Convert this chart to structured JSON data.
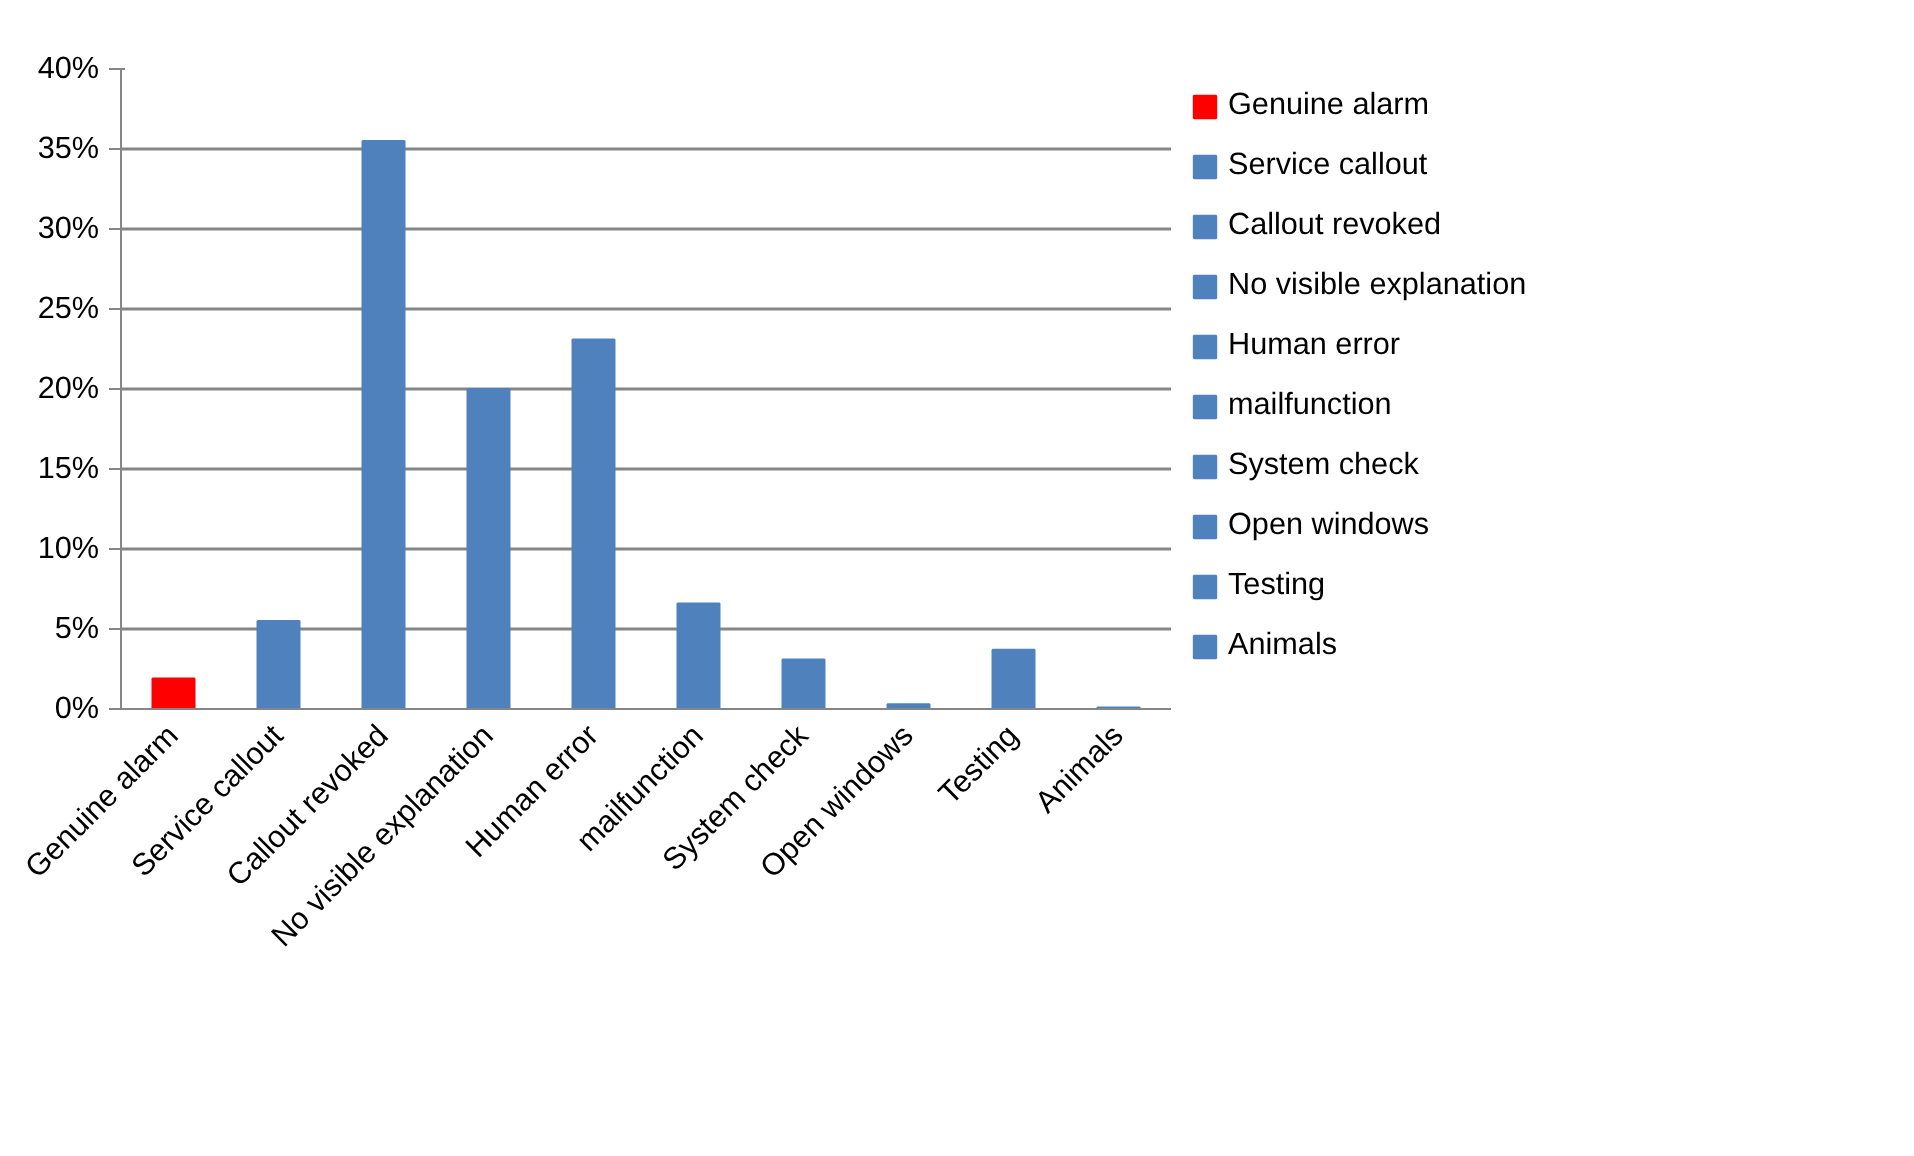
{
  "chart_data": {
    "type": "bar",
    "categories": [
      "Genuine alarm",
      "Service callout",
      "Callout revoked",
      "No visible explanation",
      "Human error",
      "mailfunction",
      "System check",
      "Open windows",
      "Testing",
      "Animals"
    ],
    "series": [
      {
        "name": "Genuine alarm",
        "color": "#ff0000",
        "values": [
          1.9,
          null,
          null,
          null,
          null,
          null,
          null,
          null,
          null,
          null
        ]
      },
      {
        "name": "Service callout",
        "color": "#4f81bd",
        "values": [
          null,
          5.5,
          null,
          null,
          null,
          null,
          null,
          null,
          null,
          null
        ]
      },
      {
        "name": "Callout revoked",
        "color": "#4f81bd",
        "values": [
          null,
          null,
          35.5,
          null,
          null,
          null,
          null,
          null,
          null,
          null
        ]
      },
      {
        "name": "No visible explanation",
        "color": "#4f81bd",
        "values": [
          null,
          null,
          null,
          20.0,
          null,
          null,
          null,
          null,
          null,
          null
        ]
      },
      {
        "name": "Human error",
        "color": "#4f81bd",
        "values": [
          null,
          null,
          null,
          null,
          23.1,
          null,
          null,
          null,
          null,
          null
        ]
      },
      {
        "name": "mailfunction",
        "color": "#4f81bd",
        "values": [
          null,
          null,
          null,
          null,
          null,
          6.6,
          null,
          null,
          null,
          null
        ]
      },
      {
        "name": "System check",
        "color": "#4f81bd",
        "values": [
          null,
          null,
          null,
          null,
          null,
          null,
          3.1,
          null,
          null,
          null
        ]
      },
      {
        "name": "Open windows",
        "color": "#4f81bd",
        "values": [
          null,
          null,
          null,
          null,
          null,
          null,
          null,
          0.3,
          null,
          null
        ]
      },
      {
        "name": "Testing",
        "color": "#4f81bd",
        "values": [
          null,
          null,
          null,
          null,
          null,
          null,
          null,
          null,
          3.7,
          null
        ]
      },
      {
        "name": "Animals",
        "color": "#4f81bd",
        "values": [
          null,
          null,
          null,
          null,
          null,
          null,
          null,
          null,
          null,
          0.1
        ]
      }
    ],
    "ylim": [
      0,
      40
    ],
    "yticks": [
      {
        "value": 0,
        "label": "0%"
      },
      {
        "value": 5,
        "label": "5%"
      },
      {
        "value": 10,
        "label": "10%"
      },
      {
        "value": 15,
        "label": "15%"
      },
      {
        "value": 20,
        "label": "20%"
      },
      {
        "value": 25,
        "label": "25%"
      },
      {
        "value": 30,
        "label": "30%"
      },
      {
        "value": 35,
        "label": "35%"
      },
      {
        "value": 40,
        "label": "40%"
      }
    ],
    "grid": "y",
    "legend": "right"
  }
}
